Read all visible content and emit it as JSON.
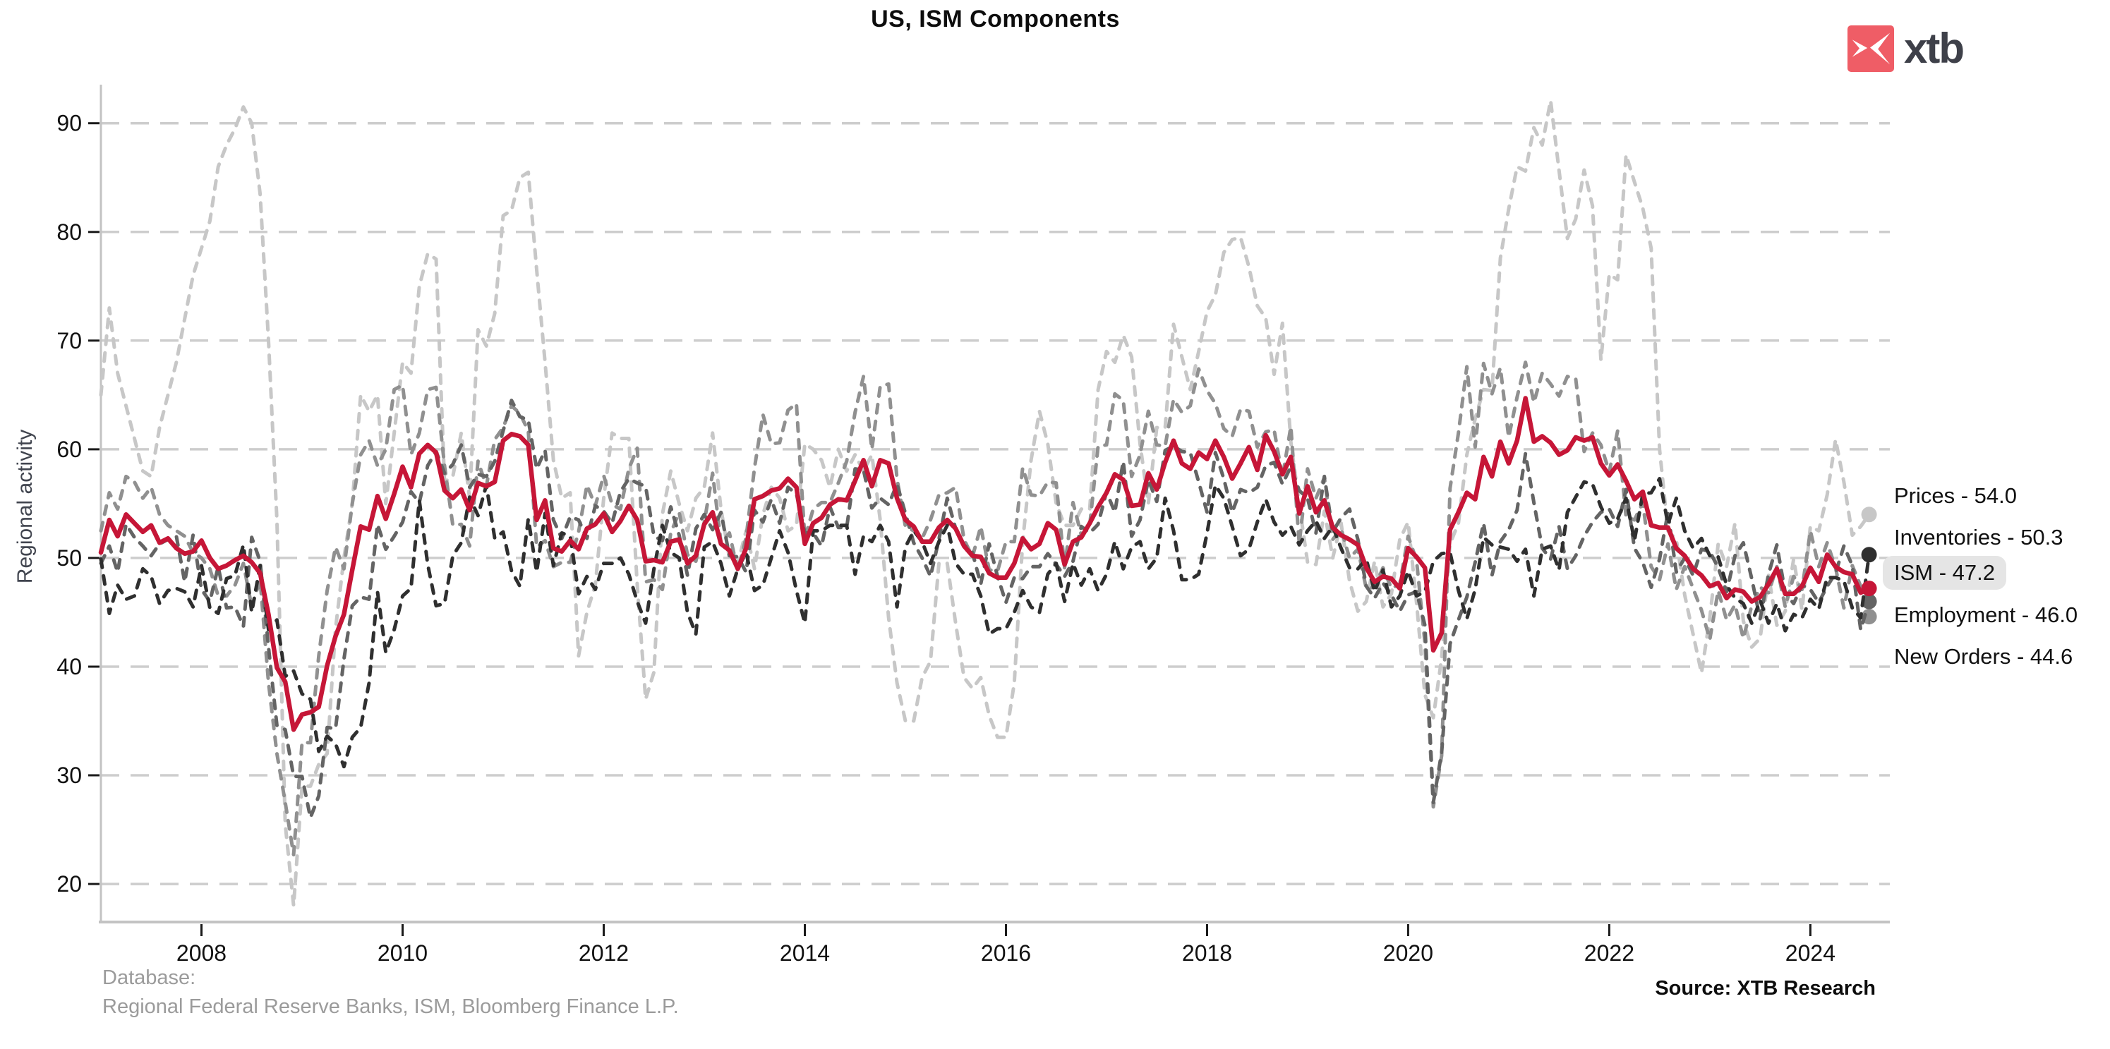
{
  "page": {
    "title": "US, ISM Components"
  },
  "logo": {
    "icon": "xtb-bird-x-icon",
    "text": "xtb",
    "square_color": "#ef5d66",
    "text_color": "#3e4049"
  },
  "footer": {
    "database_label": "Database:",
    "database_value": "Regional Federal Reserve Banks, ISM, Bloomberg Finance L.P.",
    "source": "Source: XTB Research"
  },
  "legend": {
    "items": [
      {
        "label": "Prices - 54.0",
        "series": "Prices",
        "highlighted": false
      },
      {
        "label": "Inventories - 50.3",
        "series": "Inventories",
        "highlighted": false
      },
      {
        "label": "ISM - 47.2",
        "series": "ISM",
        "highlighted": true
      },
      {
        "label": "Employment - 46.0",
        "series": "Employment",
        "highlighted": false
      },
      {
        "label": "New Orders - 44.6",
        "series": "New Orders",
        "highlighted": false
      }
    ]
  },
  "chart_data": {
    "type": "line",
    "title": "US, ISM Components",
    "xlabel": "",
    "ylabel": "Regional activity",
    "x_start_year": 2007,
    "x_step_months": 1,
    "x_end": "2024-08",
    "x_ticks": [
      2008,
      2010,
      2012,
      2014,
      2016,
      2018,
      2020,
      2022,
      2024
    ],
    "y_ticks": [
      20,
      30,
      40,
      50,
      60,
      70,
      80,
      90
    ],
    "xlim": [
      2007.0,
      2024.79
    ],
    "ylim": [
      16.5,
      95.5
    ],
    "grid": "horizontal-dashed",
    "legend_position": "right",
    "colors": {
      "grid": "#cdcdcd",
      "axis": "#c3c3c3",
      "tick": "#1a1a1a",
      "tick_label": "#111111"
    },
    "series": [
      {
        "name": "Prices",
        "color": "#c7c7c7",
        "dash": true,
        "width": 5,
        "last_value": 54.0,
        "values": [
          65.0,
          73.0,
          67.0,
          64.0,
          61.0,
          58.0,
          57.5,
          62.0,
          65.0,
          68.0,
          72.0,
          76.0,
          78.5,
          81.0,
          86.0,
          88.0,
          89.5,
          91.5,
          90.0,
          83.5,
          70.0,
          53.5,
          25.5,
          18.0,
          29.0,
          29.0,
          31.0,
          32.0,
          43.5,
          50.0,
          55.0,
          65.0,
          63.5,
          65.0,
          55.0,
          61.5,
          68.0,
          67.0,
          75.0,
          78.0,
          77.5,
          57.0,
          57.5,
          61.5,
          55.5,
          71.0,
          69.5,
          72.5,
          81.5,
          82.0,
          85.0,
          85.5,
          76.5,
          68.0,
          59.0,
          55.5,
          56.0,
          41.0,
          45.0,
          47.5,
          55.5,
          61.5,
          61.0,
          61.0,
          47.5,
          37.0,
          39.5,
          54.0,
          58.0,
          55.0,
          52.5,
          55.5,
          56.5,
          61.5,
          54.5,
          50.0,
          49.5,
          52.5,
          49.0,
          54.0,
          56.5,
          55.5,
          52.5,
          53.0,
          60.5,
          60.0,
          59.0,
          56.5,
          60.0,
          58.0,
          59.5,
          58.0,
          59.5,
          53.5,
          44.5,
          38.5,
          35.0,
          35.0,
          39.0,
          40.5,
          49.5,
          49.5,
          44.0,
          39.0,
          38.0,
          39.0,
          35.5,
          33.5,
          33.5,
          38.5,
          51.5,
          59.0,
          63.5,
          60.5,
          55.0,
          53.0,
          53.0,
          54.5,
          54.5,
          65.5,
          69.0,
          68.0,
          70.5,
          68.5,
          60.5,
          55.0,
          62.0,
          62.0,
          71.5,
          68.5,
          65.5,
          69.0,
          72.7,
          74.2,
          78.1,
          79.3,
          79.5,
          76.8,
          73.2,
          72.1,
          66.9,
          71.6,
          60.7,
          54.9,
          49.6,
          49.4,
          54.3,
          50.0,
          53.2,
          47.9,
          45.1,
          46.0,
          49.7,
          45.5,
          46.7,
          51.7,
          53.3,
          45.9,
          37.4,
          35.3,
          40.8,
          51.3,
          53.2,
          59.5,
          62.8,
          65.5,
          65.4,
          77.6,
          82.1,
          86.0,
          85.6,
          89.6,
          88.0,
          92.1,
          85.7,
          79.4,
          81.2,
          85.7,
          82.4,
          68.2,
          76.1,
          75.6,
          87.1,
          84.6,
          82.2,
          78.5,
          60.0,
          52.5,
          51.7,
          46.6,
          43.0,
          39.4,
          44.5,
          51.3,
          49.2,
          53.2,
          44.2,
          41.8,
          42.6,
          48.4,
          43.8,
          45.1,
          49.9,
          45.2,
          52.9,
          52.5,
          55.8,
          60.9,
          57.0,
          52.1,
          52.9,
          54.0
        ]
      },
      {
        "name": "New Orders",
        "color": "#909090",
        "dash": true,
        "width": 5,
        "last_value": 44.6,
        "values": [
          52.5,
          56.0,
          54.5,
          57.5,
          57.0,
          55.5,
          56.5,
          54.0,
          53.0,
          52.5,
          52.0,
          50.5,
          50.0,
          49.0,
          46.5,
          46.5,
          47.5,
          49.5,
          45.5,
          48.0,
          38.5,
          32.0,
          27.5,
          22.7,
          33.0,
          33.0,
          41.0,
          47.0,
          51.0,
          49.0,
          55.0,
          59.5,
          60.8,
          58.5,
          60.0,
          65.5,
          65.9,
          59.5,
          61.5,
          65.5,
          65.7,
          58.5,
          53.0,
          53.1,
          51.1,
          58.9,
          56.6,
          60.9,
          62.0,
          64.0,
          63.3,
          61.7,
          51.0,
          51.6,
          49.2,
          49.6,
          49.6,
          52.4,
          56.7,
          54.8,
          57.6,
          54.9,
          54.5,
          58.2,
          60.1,
          47.8,
          48.0,
          47.1,
          52.3,
          54.2,
          50.3,
          49.7,
          53.3,
          57.8,
          51.4,
          52.3,
          48.8,
          51.9,
          58.3,
          63.2,
          60.5,
          60.6,
          63.6,
          64.2,
          51.8,
          54.5,
          55.1,
          55.1,
          56.9,
          58.9,
          63.4,
          66.7,
          60.0,
          65.8,
          66.0,
          57.3,
          52.9,
          52.5,
          51.8,
          53.5,
          55.8,
          56.0,
          56.5,
          51.7,
          50.1,
          52.9,
          48.9,
          48.8,
          51.5,
          51.5,
          58.3,
          55.8,
          55.7,
          57.0,
          56.9,
          49.1,
          55.1,
          52.1,
          53.0,
          60.3,
          60.4,
          65.1,
          64.5,
          57.5,
          59.5,
          63.5,
          60.4,
          60.3,
          64.6,
          63.4,
          64.0,
          67.4,
          65.4,
          64.2,
          61.9,
          61.2,
          63.7,
          63.5,
          60.2,
          61.6,
          61.8,
          57.4,
          62.1,
          51.3,
          58.2,
          55.5,
          57.4,
          51.7,
          52.7,
          50.0,
          50.8,
          47.2,
          47.3,
          49.1,
          47.2,
          47.6,
          52.0,
          49.8,
          42.2,
          27.1,
          31.8,
          56.4,
          61.5,
          67.6,
          60.2,
          67.9,
          65.1,
          67.5,
          61.1,
          64.8,
          68.0,
          64.3,
          67.0,
          66.0,
          64.9,
          66.7,
          66.5,
          59.8,
          61.5,
          60.4,
          57.9,
          61.7,
          53.8,
          53.5,
          55.1,
          49.2,
          48.0,
          51.3,
          47.1,
          49.2,
          47.2,
          45.2,
          42.5,
          47.0,
          44.3,
          45.7,
          42.6,
          45.6,
          47.3,
          46.8,
          49.2,
          45.5,
          48.3,
          47.1,
          52.5,
          49.2,
          51.4,
          49.1,
          45.4,
          49.3,
          47.4,
          44.6
        ]
      },
      {
        "name": "Employment",
        "color": "#646464",
        "dash": true,
        "width": 5,
        "last_value": 46.0,
        "values": [
          49.5,
          51.1,
          48.7,
          53.1,
          51.9,
          51.1,
          50.2,
          51.3,
          51.7,
          52.0,
          47.8,
          52.1,
          47.1,
          46.0,
          49.2,
          45.4,
          45.5,
          43.7,
          51.9,
          49.7,
          41.8,
          34.6,
          34.2,
          29.9,
          29.9,
          26.1,
          28.1,
          34.4,
          34.3,
          40.7,
          45.6,
          46.4,
          46.2,
          53.1,
          50.8,
          52.0,
          53.3,
          56.1,
          55.1,
          58.5,
          59.8,
          57.8,
          58.6,
          60.4,
          56.5,
          57.7,
          57.5,
          58.9,
          61.7,
          64.5,
          63.0,
          62.7,
          58.2,
          59.9,
          53.5,
          51.8,
          53.8,
          53.5,
          51.8,
          54.8,
          54.3,
          53.2,
          56.1,
          57.3,
          56.9,
          56.6,
          52.0,
          51.6,
          54.7,
          52.1,
          48.4,
          52.7,
          54.0,
          52.6,
          54.2,
          50.2,
          50.1,
          48.7,
          54.4,
          53.3,
          55.4,
          53.2,
          56.5,
          55.9,
          52.3,
          52.3,
          51.1,
          54.7,
          52.8,
          52.8,
          58.2,
          58.1,
          54.6,
          55.5,
          54.9,
          56.8,
          54.1,
          51.4,
          50.0,
          48.3,
          51.7,
          55.5,
          52.7,
          51.2,
          50.5,
          47.6,
          51.3,
          48.3,
          45.9,
          48.2,
          48.1,
          49.2,
          49.2,
          50.4,
          49.4,
          48.3,
          49.7,
          52.9,
          52.3,
          53.1,
          56.1,
          54.2,
          58.9,
          52.0,
          53.5,
          57.2,
          55.2,
          59.9,
          60.3,
          59.8,
          59.7,
          57.0,
          54.2,
          59.7,
          57.3,
          54.2,
          56.3,
          56.0,
          56.5,
          58.5,
          58.8,
          56.8,
          58.4,
          56.2,
          55.5,
          52.3,
          57.5,
          52.4,
          53.7,
          54.5,
          51.7,
          47.4,
          46.3,
          47.7,
          46.6,
          45.1,
          46.6,
          46.9,
          43.8,
          27.5,
          32.1,
          42.1,
          44.3,
          46.4,
          49.6,
          53.2,
          48.4,
          51.5,
          52.6,
          54.4,
          59.6,
          55.1,
          50.9,
          49.9,
          52.9,
          49.0,
          50.2,
          52.0,
          53.3,
          54.2,
          54.5,
          52.9,
          56.3,
          50.9,
          49.6,
          47.3,
          49.9,
          54.2,
          48.7,
          50.0,
          48.4,
          50.8,
          50.6,
          49.1,
          46.9,
          50.2,
          51.4,
          48.1,
          44.4,
          48.5,
          51.2,
          46.8,
          45.8,
          47.5,
          47.1,
          45.9,
          47.4,
          48.6,
          51.1,
          49.3,
          43.4,
          46.0
        ]
      },
      {
        "name": "Inventories",
        "color": "#2f2f2f",
        "dash": true,
        "width": 5,
        "last_value": 50.3,
        "values": [
          49.9,
          44.9,
          47.5,
          46.2,
          46.5,
          49.0,
          48.3,
          45.8,
          47.0,
          47.2,
          46.9,
          45.5,
          49.3,
          45.4,
          44.9,
          48.1,
          48.4,
          51.2,
          45.0,
          49.3,
          43.4,
          44.3,
          39.1,
          39.6,
          37.5,
          37.0,
          32.2,
          33.6,
          32.9,
          30.8,
          33.5,
          34.4,
          38.5,
          46.9,
          41.3,
          43.4,
          46.5,
          47.2,
          55.3,
          49.4,
          45.6,
          45.8,
          50.2,
          51.4,
          55.6,
          53.9,
          56.7,
          51.8,
          52.4,
          48.8,
          47.4,
          53.6,
          48.7,
          54.1,
          49.3,
          52.3,
          52.0,
          46.7,
          48.3,
          47.1,
          49.5,
          49.5,
          50.0,
          48.5,
          46.0,
          44.0,
          49.0,
          53.0,
          50.5,
          50.0,
          45.0,
          43.0,
          51.0,
          51.5,
          49.5,
          46.5,
          49.0,
          50.5,
          47.0,
          47.5,
          50.0,
          52.5,
          50.5,
          47.0,
          44.0,
          52.5,
          52.5,
          53.0,
          53.0,
          53.0,
          48.5,
          52.0,
          51.5,
          53.0,
          51.5,
          45.5,
          51.0,
          52.5,
          51.5,
          49.5,
          51.5,
          53.0,
          49.5,
          48.5,
          48.5,
          46.5,
          43.0,
          43.5,
          43.5,
          45.0,
          47.0,
          45.5,
          45.0,
          48.5,
          49.5,
          46.0,
          49.5,
          47.5,
          49.0,
          47.0,
          48.5,
          51.5,
          49.0,
          51.0,
          51.5,
          49.0,
          50.0,
          55.5,
          52.5,
          48.0,
          48.0,
          48.5,
          52.3,
          56.7,
          55.5,
          52.9,
          50.2,
          50.8,
          53.3,
          55.4,
          53.3,
          52.1,
          52.9,
          51.2,
          52.5,
          53.4,
          51.8,
          52.9,
          50.9,
          49.1,
          49.0,
          49.9,
          46.9,
          48.9,
          45.5,
          46.5,
          48.8,
          46.5,
          46.9,
          49.7,
          50.4,
          50.5,
          47.0,
          44.4,
          47.1,
          51.9,
          51.2,
          51.0,
          50.8,
          49.7,
          50.8,
          46.5,
          50.8,
          51.1,
          48.9,
          54.2,
          55.6,
          57.0,
          56.8,
          54.7,
          53.2,
          53.6,
          55.5,
          51.6,
          55.9,
          56.0,
          57.3,
          53.1,
          55.5,
          52.5,
          50.9,
          51.8,
          50.2,
          50.1,
          47.5,
          46.3,
          45.8,
          44.0,
          46.1,
          44.0,
          45.8,
          43.3,
          44.8,
          44.5,
          46.2,
          45.3,
          48.2,
          48.2,
          47.9,
          45.4,
          44.5,
          50.3
        ]
      },
      {
        "name": "ISM",
        "color": "#c61637",
        "dash": false,
        "width": 6.5,
        "last_value": 47.2,
        "values": [
          50.5,
          53.5,
          52.0,
          54.0,
          53.2,
          52.4,
          53.0,
          51.4,
          51.8,
          50.9,
          50.4,
          50.6,
          51.6,
          50.0,
          49.0,
          49.3,
          49.8,
          50.2,
          49.6,
          48.6,
          44.8,
          39.9,
          38.6,
          34.2,
          35.6,
          35.8,
          36.3,
          40.1,
          42.8,
          44.8,
          48.9,
          52.9,
          52.6,
          55.7,
          53.6,
          55.9,
          58.4,
          56.5,
          59.6,
          60.4,
          59.7,
          56.2,
          55.5,
          56.3,
          54.4,
          56.9,
          56.6,
          57.0,
          60.8,
          61.4,
          61.2,
          60.4,
          53.5,
          55.3,
          50.9,
          50.6,
          51.6,
          50.8,
          52.7,
          53.1,
          54.1,
          52.4,
          53.4,
          54.8,
          53.5,
          49.7,
          49.8,
          49.6,
          51.5,
          51.7,
          49.5,
          50.2,
          53.1,
          54.2,
          51.3,
          50.7,
          49.0,
          50.9,
          55.4,
          55.7,
          56.2,
          56.4,
          57.3,
          56.5,
          51.3,
          53.2,
          53.7,
          54.9,
          55.4,
          55.3,
          57.1,
          59.0,
          56.6,
          59.0,
          58.7,
          55.5,
          53.5,
          52.9,
          51.5,
          51.5,
          52.8,
          53.5,
          52.7,
          51.1,
          50.2,
          50.1,
          48.6,
          48.2,
          48.2,
          49.5,
          51.8,
          50.8,
          51.3,
          53.2,
          52.6,
          49.4,
          51.5,
          51.9,
          53.2,
          54.7,
          56.0,
          57.7,
          57.2,
          54.8,
          54.9,
          57.8,
          56.3,
          58.8,
          60.8,
          58.7,
          58.2,
          59.7,
          59.1,
          60.8,
          59.3,
          57.3,
          58.7,
          60.2,
          58.1,
          61.3,
          59.8,
          57.7,
          59.3,
          54.1,
          56.6,
          54.2,
          55.3,
          52.8,
          52.1,
          51.7,
          51.2,
          49.1,
          47.8,
          48.3,
          48.1,
          47.2,
          50.9,
          50.1,
          49.1,
          41.5,
          43.1,
          52.6,
          54.2,
          56.0,
          55.4,
          59.3,
          57.5,
          60.7,
          58.7,
          60.8,
          64.7,
          60.7,
          61.2,
          60.6,
          59.5,
          59.9,
          61.1,
          60.8,
          61.1,
          58.7,
          57.6,
          58.6,
          57.1,
          55.4,
          56.1,
          53.0,
          52.8,
          52.8,
          50.9,
          50.2,
          49.0,
          48.4,
          47.4,
          47.7,
          46.3,
          47.1,
          46.9,
          46.0,
          46.4,
          47.6,
          49.0,
          46.7,
          46.7,
          47.4,
          49.1,
          47.8,
          50.3,
          49.2,
          48.7,
          48.5,
          46.8,
          47.2
        ]
      }
    ]
  }
}
